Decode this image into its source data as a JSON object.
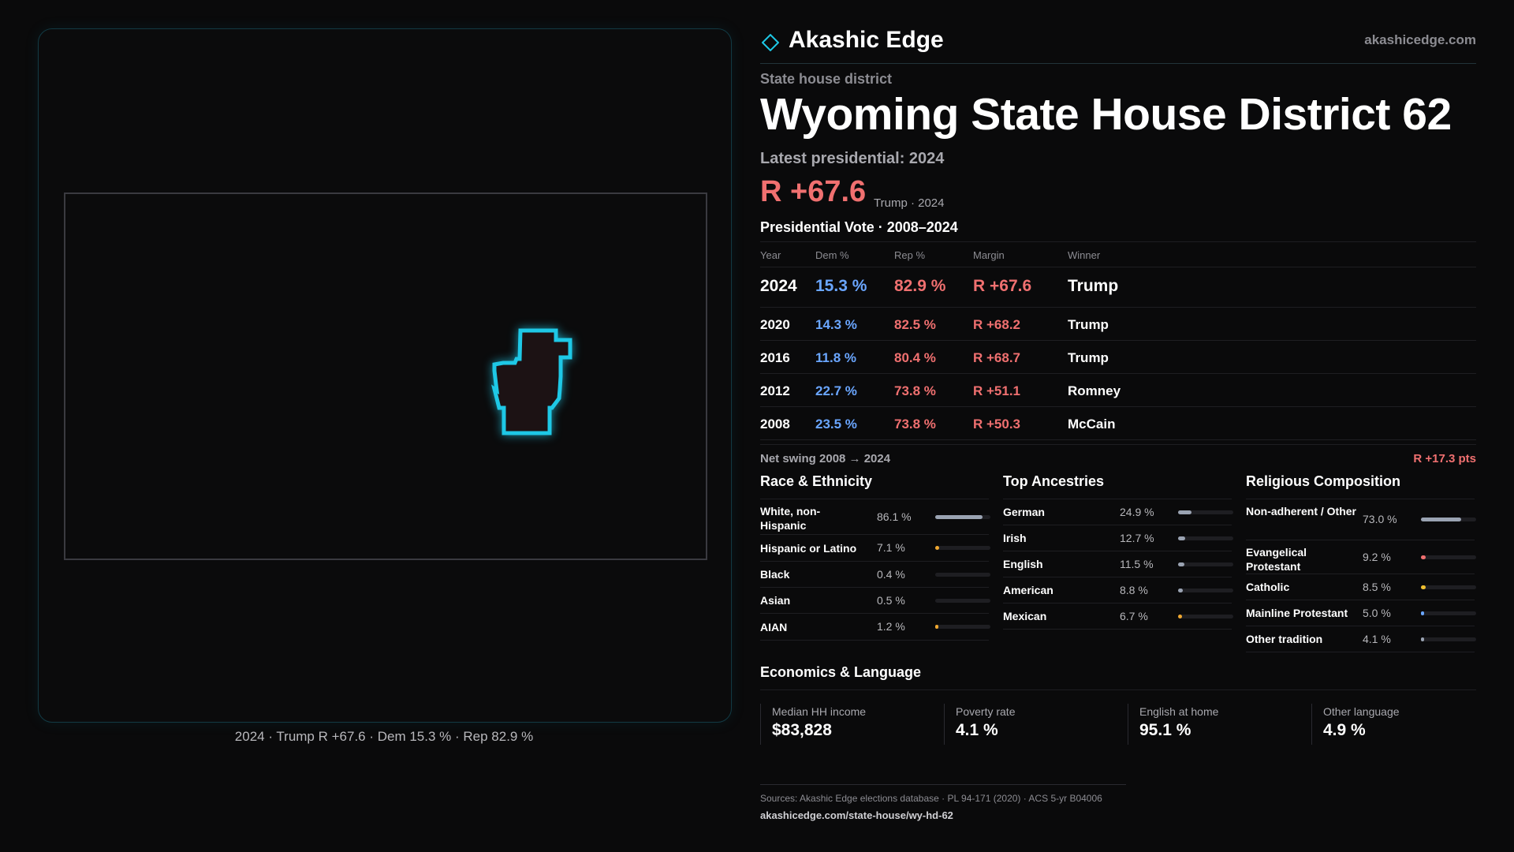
{
  "map": {
    "caption": "2024 · Trump R +67.6 · Dem 15.3 % · Rep 82.9 %",
    "district_glow_color": "#1ec8e6",
    "district_fill_color": "#1c1214"
  },
  "header": {
    "brand": "Akashic Edge",
    "site": "akashicedge.com",
    "accent": "#1ec8e6"
  },
  "district": {
    "kicker": "State house district",
    "title": "Wyoming State House District 62",
    "latest_label": "Latest presidential: 2024",
    "margin": "R +67.6",
    "margin_sub": "Trump · 2024"
  },
  "votes": {
    "heading": "Presidential Vote · 2008–2024",
    "columns": [
      "Year",
      "Dem %",
      "Rep %",
      "Margin",
      "Winner"
    ],
    "rows": [
      {
        "year": "2024",
        "dem": "15.3 %",
        "rep": "82.9 %",
        "margin": "R +67.6",
        "winner": "Trump"
      },
      {
        "year": "2020",
        "dem": "14.3 %",
        "rep": "82.5 %",
        "margin": "R +68.2",
        "winner": "Trump"
      },
      {
        "year": "2016",
        "dem": "11.8 %",
        "rep": "80.4 %",
        "margin": "R +68.7",
        "winner": "Trump"
      },
      {
        "year": "2012",
        "dem": "22.7 %",
        "rep": "73.8 %",
        "margin": "R +51.1",
        "winner": "Romney"
      },
      {
        "year": "2008",
        "dem": "23.5 %",
        "rep": "73.8 %",
        "margin": "R +50.3",
        "winner": "McCain"
      }
    ],
    "swing_label": "Net swing 2008 → 2024",
    "swing_value": "R +17.3 pts",
    "dem_color": "#6aa6ff",
    "rep_color": "#f07070"
  },
  "race": {
    "title": "Race & Ethnicity",
    "items": [
      {
        "label": "White, non-Hispanic",
        "value": "86.1 %",
        "pct": 86.1,
        "color": "#9aa3b2"
      },
      {
        "label": "Hispanic or Latino",
        "value": "7.1 %",
        "pct": 7.1,
        "color": "#f0a830"
      },
      {
        "label": "Black",
        "value": "0.4 %",
        "pct": 0.4,
        "color": "#9aa3b2"
      },
      {
        "label": "Asian",
        "value": "0.5 %",
        "pct": 0.5,
        "color": "#9aa3b2"
      },
      {
        "label": "AIAN",
        "value": "1.2 %",
        "pct": 1.2,
        "color": "#f0a830"
      }
    ]
  },
  "ancestry": {
    "title": "Top Ancestries",
    "items": [
      {
        "label": "German",
        "value": "24.9 %",
        "pct": 24.9,
        "color": "#9aa3b2"
      },
      {
        "label": "Irish",
        "value": "12.7 %",
        "pct": 12.7,
        "color": "#9aa3b2"
      },
      {
        "label": "English",
        "value": "11.5 %",
        "pct": 11.5,
        "color": "#9aa3b2"
      },
      {
        "label": "American",
        "value": "8.8 %",
        "pct": 8.8,
        "color": "#9aa3b2"
      },
      {
        "label": "Mexican",
        "value": "6.7 %",
        "pct": 6.7,
        "color": "#f0a830"
      }
    ]
  },
  "religion": {
    "title": "Religious Composition",
    "items": [
      {
        "label": "Non-adherent / Other",
        "value": "73.0 %",
        "pct": 73.0,
        "color": "#9aa3b2"
      },
      {
        "label": "Evangelical Protestant",
        "value": "9.2 %",
        "pct": 9.2,
        "color": "#f07070"
      },
      {
        "label": "Catholic",
        "value": "8.5 %",
        "pct": 8.5,
        "color": "#f0c030"
      },
      {
        "label": "Mainline Protestant",
        "value": "5.0 %",
        "pct": 5.0,
        "color": "#6aa6ff"
      },
      {
        "label": "Other tradition",
        "value": "4.1 %",
        "pct": 4.1,
        "color": "#9aa3b2"
      }
    ]
  },
  "economics": {
    "title": "Economics & Language",
    "items": [
      {
        "label": "Median HH income",
        "value": "$83,828"
      },
      {
        "label": "Poverty rate",
        "value": "4.1 %"
      },
      {
        "label": "English at home",
        "value": "95.1 %"
      },
      {
        "label": "Other language",
        "value": "4.9 %"
      }
    ]
  },
  "sources": {
    "line": "Sources: Akashic Edge elections database · PL 94-171 (2020) · ACS 5-yr B04006",
    "url": "akashicedge.com/state-house/wy-hd-62"
  }
}
